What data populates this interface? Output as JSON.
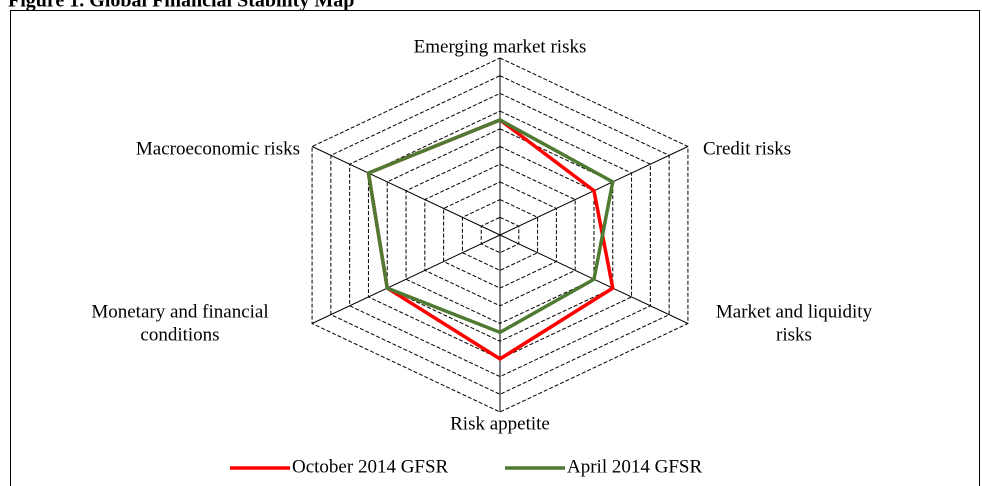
{
  "chart_data": {
    "type": "radar",
    "title": "Figure 1. Global Financial Stability Map",
    "categories": [
      [
        "Emerging market risks"
      ],
      [
        "Credit risks"
      ],
      [
        "Market and liquidity",
        "risks"
      ],
      [
        "Risk appetite"
      ],
      [
        "Monetary and financial",
        "conditions"
      ],
      [
        "Macroeconomic risks"
      ]
    ],
    "series": [
      {
        "name": "October 2014 GFSR",
        "color": "#ff0000",
        "values": [
          6.5,
          5,
          6,
          7,
          6,
          7
        ]
      },
      {
        "name": "April 2014 GFSR",
        "color": "#4e7a32",
        "values": [
          6.5,
          6,
          5,
          5.5,
          6,
          7
        ]
      }
    ],
    "ylim": [
      0,
      10
    ],
    "yticks": [
      1,
      2,
      3,
      4,
      5,
      6,
      7,
      8,
      9,
      10
    ],
    "grid": true,
    "legend": "bottom"
  }
}
